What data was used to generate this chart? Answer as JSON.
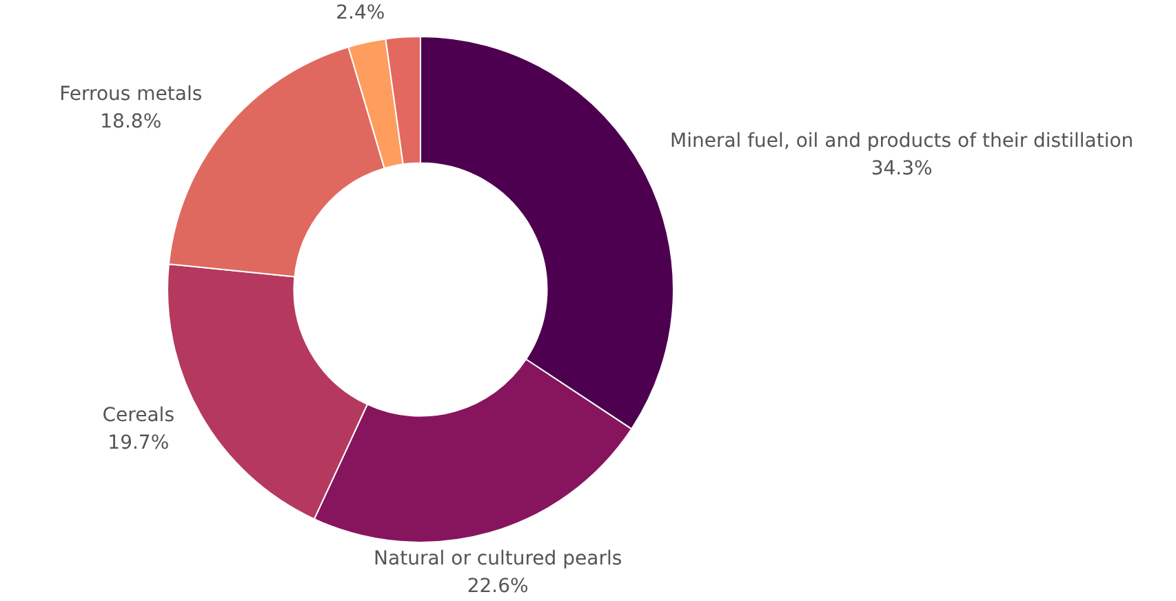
{
  "chart_data": {
    "type": "donut",
    "categories": [
      "Mineral fuel, oil and products of their distillation",
      "Natural or cultured pearls",
      "Cereals",
      "Ferrous metals",
      null,
      null
    ],
    "values": [
      34.3,
      22.6,
      19.7,
      18.8,
      2.4,
      2.2
    ],
    "colors": [
      "#4d0050",
      "#87155e",
      "#b5395e",
      "#e0695f",
      "#fe9d5e",
      "#e3685f"
    ],
    "value_labels": [
      "34.3%",
      "22.6%",
      "19.7%",
      "18.8%",
      "2.4%",
      null
    ],
    "legend": false
  }
}
